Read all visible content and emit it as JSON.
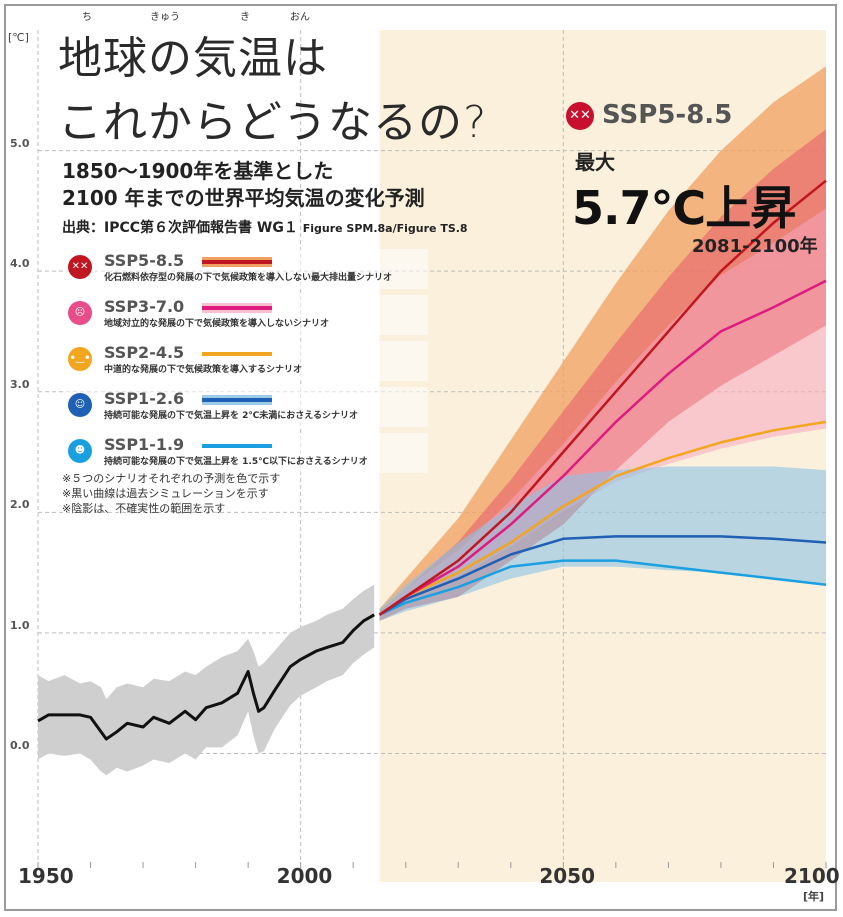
{
  "title_line1": "地球の気温は",
  "title_line2": "これからどうなるの?",
  "ruby": [
    "ち",
    "きゅう",
    "き",
    "おん"
  ],
  "subtitle_line1": "1850〜1900年を基準とした",
  "subtitle_line2": "2100 年までの世界平均気温の変化予測",
  "source_main": "出典：IPCC第６次評価報告書 WG１",
  "source_fig": "Figure SPM.8a/Figure TS.8",
  "highlight": {
    "icon": "dizzy-face-icon",
    "scenario": "SSP5-8.5",
    "max_label": "最大",
    "max_value": "5.7℃上昇",
    "period": "2081-2100年"
  },
  "legend": [
    {
      "name": "SSP5-8.5",
      "desc": "化石燃料依存型の発展の下で気候政策を導入しない最大排出量シナリオ",
      "color": "#c0161f",
      "icon": "dizzy-face-icon"
    },
    {
      "name": "SSP3-7.0",
      "desc": "地域対立的な発展の下で気候政策を導入しないシナリオ",
      "color": "#de1b7f",
      "icon": "worried-face-icon"
    },
    {
      "name": "SSP2-4.5",
      "desc": "中道的な発展の下で気候政策を導入するシナリオ",
      "color": "#f2a51e",
      "icon": "neutral-face-icon"
    },
    {
      "name": "SSP1-2.6",
      "desc": "持続可能な発展の下で気温上昇を 2℃未満におさえるシナリオ",
      "color": "#1f5fb4",
      "icon": "smiling-face-icon"
    },
    {
      "name": "SSP1-1.9",
      "desc": "持続可能な発展の下で気温上昇を 1.5℃以下におさえるシナリオ",
      "color": "#1aa0e0",
      "icon": "grinning-face-icon"
    }
  ],
  "notes": [
    "※５つのシナリオそれぞれの予測を色で示す",
    "※黒い曲線は過去シミュレーションを示す",
    "※陰影は、不確実性の範囲を示す"
  ],
  "chart_data": {
    "type": "line",
    "ylabel": "[℃]",
    "xlabel": "[年]",
    "xlim": [
      1950,
      2100
    ],
    "ylim": [
      -0.9,
      6.0
    ],
    "yticks": [
      "0.0",
      "1.0",
      "2.0",
      "3.0",
      "4.0",
      "5.0"
    ],
    "xticks": [
      "1950",
      "2000",
      "2050",
      "2100"
    ],
    "historical": {
      "x": [
        1950,
        1952,
        1955,
        1958,
        1960,
        1962,
        1963,
        1965,
        1967,
        1970,
        1972,
        1975,
        1978,
        1980,
        1982,
        1985,
        1988,
        1990,
        1991,
        1992,
        1993,
        1995,
        1998,
        2000,
        2003,
        2005,
        2008,
        2010,
        2012,
        2014
      ],
      "y": [
        0.27,
        0.32,
        0.32,
        0.32,
        0.3,
        0.18,
        0.12,
        0.18,
        0.25,
        0.22,
        0.3,
        0.25,
        0.35,
        0.28,
        0.38,
        0.42,
        0.5,
        0.68,
        0.5,
        0.35,
        0.38,
        0.52,
        0.72,
        0.78,
        0.85,
        0.88,
        0.92,
        1.02,
        1.1,
        1.15
      ],
      "band_upper": [
        0.65,
        0.6,
        0.65,
        0.58,
        0.6,
        0.55,
        0.45,
        0.55,
        0.58,
        0.55,
        0.62,
        0.6,
        0.68,
        0.65,
        0.72,
        0.8,
        0.85,
        0.95,
        0.85,
        0.72,
        0.75,
        0.85,
        1.0,
        1.05,
        1.1,
        1.15,
        1.2,
        1.28,
        1.35,
        1.4
      ],
      "band_lower": [
        -0.05,
        0.0,
        -0.02,
        0.0,
        -0.05,
        -0.15,
        -0.18,
        -0.12,
        -0.15,
        -0.1,
        -0.05,
        -0.08,
        0.0,
        -0.05,
        0.05,
        0.05,
        0.15,
        0.35,
        0.15,
        0.0,
        0.02,
        0.2,
        0.4,
        0.48,
        0.55,
        0.6,
        0.65,
        0.75,
        0.82,
        0.88
      ]
    },
    "x": [
      2015,
      2020,
      2030,
      2040,
      2050,
      2060,
      2070,
      2080,
      2090,
      2100
    ],
    "series": [
      {
        "name": "SSP5-8.5",
        "values": [
          1.15,
          1.3,
          1.6,
          2.0,
          2.5,
          3.0,
          3.5,
          4.0,
          4.4,
          4.75
        ],
        "upper": [
          1.2,
          1.45,
          1.95,
          2.6,
          3.25,
          3.9,
          4.5,
          5.0,
          5.4,
          5.7
        ],
        "lower": [
          1.1,
          1.2,
          1.3,
          1.6,
          1.9,
          2.35,
          2.75,
          3.05,
          3.3,
          3.55
        ]
      },
      {
        "name": "SSP3-7.0",
        "values": [
          1.15,
          1.3,
          1.55,
          1.9,
          2.3,
          2.75,
          3.15,
          3.5,
          3.7,
          3.92
        ]
      },
      {
        "name": "SSP2-4.5",
        "values": [
          1.15,
          1.3,
          1.5,
          1.75,
          2.05,
          2.3,
          2.45,
          2.58,
          2.68,
          2.75
        ]
      },
      {
        "name": "SSP1-2.6",
        "values": [
          1.15,
          1.28,
          1.45,
          1.65,
          1.78,
          1.8,
          1.8,
          1.8,
          1.78,
          1.75
        ],
        "upper": [
          1.2,
          1.4,
          1.75,
          2.05,
          2.3,
          2.35,
          2.38,
          2.38,
          2.38,
          2.35
        ],
        "lower": [
          1.1,
          1.18,
          1.3,
          1.45,
          1.55,
          1.55,
          1.52,
          1.5,
          1.45,
          1.4
        ]
      },
      {
        "name": "SSP1-1.9",
        "values": [
          1.15,
          1.25,
          1.38,
          1.55,
          1.6,
          1.6,
          1.55,
          1.5,
          1.45,
          1.4
        ]
      }
    ],
    "future_shading_start": 2015
  }
}
